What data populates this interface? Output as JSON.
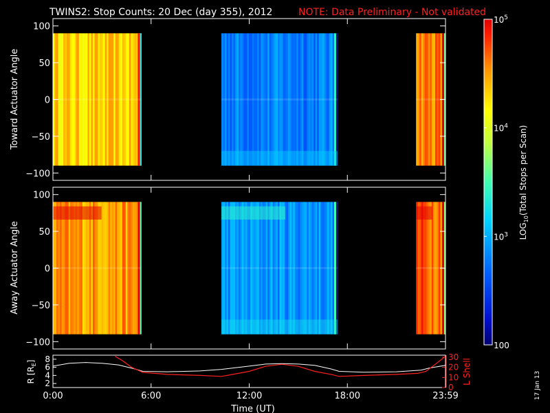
{
  "header": {
    "title": "TWINS2: Stop Counts: 20 Dec (day 355), 2012",
    "note": "NOTE: Data Preliminary - Not validated"
  },
  "colors": {
    "background": "#000000",
    "axes": "#ffffff",
    "note": "#ff2020",
    "r_line": "#ffffff",
    "lshell_line": "#ff2020"
  },
  "stamp": "17 Jan 13",
  "chart_data": [
    {
      "type": "heatmap",
      "name": "toward-panel",
      "ylabel": "Toward Actuator Angle",
      "ylim": [
        -110,
        110
      ],
      "yticks": [
        100,
        50,
        0,
        -50,
        -100
      ],
      "ytick_labels": [
        "100",
        "50",
        "0",
        "−50",
        "−100"
      ],
      "xlim": [
        0,
        24
      ],
      "angle_range": [
        -90,
        90
      ],
      "segments": [
        {
          "start": 0.0,
          "end": 5.4,
          "level": 4.3
        },
        {
          "start": 10.3,
          "end": 17.4,
          "level": 2.8
        },
        {
          "start": 22.2,
          "end": 24.0,
          "level": 4.6
        }
      ]
    },
    {
      "type": "heatmap",
      "name": "away-panel",
      "ylabel": "Away Actuator Angle",
      "ylim": [
        -110,
        110
      ],
      "yticks": [
        100,
        50,
        0,
        -50,
        -100
      ],
      "ytick_labels": [
        "100",
        "50",
        "0",
        "−50",
        "−100"
      ],
      "xlim": [
        0,
        24
      ],
      "angle_range": [
        -90,
        90
      ],
      "segments": [
        {
          "start": 0.0,
          "end": 5.4,
          "level": 4.5
        },
        {
          "start": 10.3,
          "end": 17.4,
          "level": 2.9
        },
        {
          "start": 22.2,
          "end": 24.0,
          "level": 4.7
        }
      ]
    },
    {
      "type": "line",
      "name": "orbit-panel",
      "ylabel": "R [R",
      "ylabel_sub": "E",
      "ylabel_end": "]",
      "ylim": [
        1,
        9
      ],
      "yticks": [
        8,
        6,
        4,
        2
      ],
      "ytick_labels": [
        "8",
        "6",
        "4",
        "2"
      ],
      "y2label": "L Shell",
      "y2lim": [
        0,
        32
      ],
      "y2ticks": [
        30,
        20,
        10,
        0
      ],
      "y2tick_labels": [
        "30",
        "20",
        "10",
        "0"
      ],
      "xlim": [
        0,
        24
      ],
      "xticks": [
        0,
        6,
        12,
        18,
        24
      ],
      "xtick_labels": [
        "0:00",
        "6:00",
        "12:00",
        "18:00",
        "23:59"
      ],
      "xlabel": "Time (UT)",
      "series": [
        {
          "name": "R",
          "x": [
            0,
            1,
            2,
            3,
            4,
            5,
            5.5,
            7,
            9,
            10.3,
            12,
            13,
            14,
            15,
            16,
            17,
            17.5,
            19,
            21,
            22.5,
            23,
            24
          ],
          "y": [
            6.3,
            7.0,
            7.2,
            7.0,
            6.6,
            5.6,
            5.0,
            4.9,
            5.1,
            5.5,
            6.3,
            6.8,
            6.9,
            6.8,
            6.5,
            5.6,
            5.0,
            4.8,
            4.9,
            5.3,
            5.8,
            6.5
          ]
        },
        {
          "name": "L Shell",
          "x": [
            3.8,
            4.3,
            4.8,
            5.5,
            7,
            9,
            10.3,
            11,
            12,
            13,
            14,
            15,
            16,
            17,
            17.5,
            19,
            21,
            22.3,
            22.8,
            23.3,
            24
          ],
          "y": [
            31,
            26,
            20,
            15,
            13,
            12,
            11,
            13,
            16,
            21,
            23,
            21,
            16,
            13,
            11,
            12,
            13,
            14,
            16,
            22,
            31
          ]
        }
      ]
    }
  ],
  "colorbar": {
    "label_pre": "LOG",
    "label_sub": "10",
    "label_post": "(Total Stops per Scan)",
    "range": [
      2,
      5
    ],
    "ticks": [
      {
        "level": 5,
        "base": "10",
        "exp": "5"
      },
      {
        "level": 4,
        "base": "10",
        "exp": "4"
      },
      {
        "level": 3,
        "base": "10",
        "exp": "3"
      },
      {
        "level": 2,
        "base": "100",
        "exp": ""
      }
    ]
  }
}
